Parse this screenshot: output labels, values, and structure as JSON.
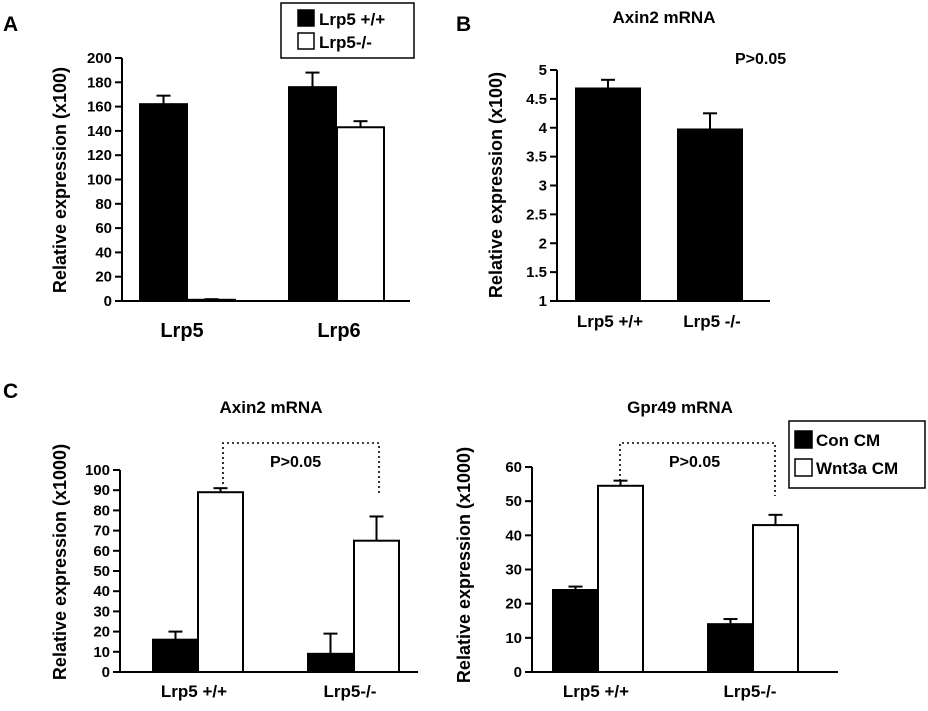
{
  "chart_data": [
    {
      "id": "A",
      "panel_letter": "A",
      "type": "bar",
      "title": "",
      "ylabel": "Relative expression (x100)",
      "ylim": [
        0,
        200
      ],
      "yticks": [
        0,
        20,
        40,
        60,
        80,
        100,
        120,
        140,
        160,
        180,
        200
      ],
      "categories": [
        "Lrp5",
        "Lrp6"
      ],
      "series": [
        {
          "name": "Lrp5 +/+",
          "fill": "#000000",
          "values": [
            162,
            176
          ],
          "errors": [
            7,
            12
          ]
        },
        {
          "name": "Lrp5-/-",
          "fill": "#ffffff",
          "values": [
            1,
            143
          ],
          "errors": [
            0.5,
            5
          ]
        }
      ],
      "legend": {
        "position": "top-right",
        "entries": [
          "Lrp5 +/+",
          "Lrp5-/-"
        ]
      },
      "annotation": ""
    },
    {
      "id": "B",
      "panel_letter": "B",
      "type": "bar",
      "title": "Axin2 mRNA",
      "ylabel": "Relative expression (x100)",
      "ylim": [
        1,
        5
      ],
      "yticks": [
        1,
        1.5,
        2,
        2.5,
        3,
        3.5,
        4,
        4.5,
        5
      ],
      "categories": [
        "Lrp5 +/+",
        "Lrp5 -/-"
      ],
      "series": [
        {
          "fill": "#000000",
          "values": [
            4.68,
            3.97
          ],
          "errors": [
            0.15,
            0.28
          ]
        }
      ],
      "annotation": "P>0.05"
    },
    {
      "id": "C1",
      "panel_letter": "C",
      "type": "bar",
      "title": "Axin2 mRNA",
      "ylabel": "Relative expression (x1000)",
      "ylim": [
        0,
        100
      ],
      "yticks": [
        0,
        10,
        20,
        30,
        40,
        50,
        60,
        70,
        80,
        90,
        100
      ],
      "categories": [
        "Lrp5 +/+",
        "Lrp5-/-"
      ],
      "series": [
        {
          "name": "Con CM",
          "fill": "#000000",
          "values": [
            16,
            9
          ],
          "errors": [
            4,
            10
          ]
        },
        {
          "name": "Wnt3a CM",
          "fill": "#ffffff",
          "values": [
            89,
            65
          ],
          "errors": [
            2,
            12
          ]
        }
      ],
      "annotation": "P>0.05"
    },
    {
      "id": "C2",
      "panel_letter": "",
      "type": "bar",
      "title": "Gpr49 mRNA",
      "ylabel": "Relative expression (x1000)",
      "ylim": [
        0,
        60
      ],
      "yticks": [
        0,
        10,
        20,
        30,
        40,
        50,
        60
      ],
      "categories": [
        "Lrp5 +/+",
        "Lrp5-/-"
      ],
      "series": [
        {
          "name": "Con CM",
          "fill": "#000000",
          "values": [
            24,
            14
          ],
          "errors": [
            1,
            1.5
          ]
        },
        {
          "name": "Wnt3a CM",
          "fill": "#ffffff",
          "values": [
            54.5,
            43
          ],
          "errors": [
            1.5,
            3
          ]
        }
      ],
      "legend": {
        "position": "top-right",
        "entries": [
          "Con CM",
          "Wnt3a CM"
        ]
      },
      "annotation": "P>0.05"
    }
  ]
}
